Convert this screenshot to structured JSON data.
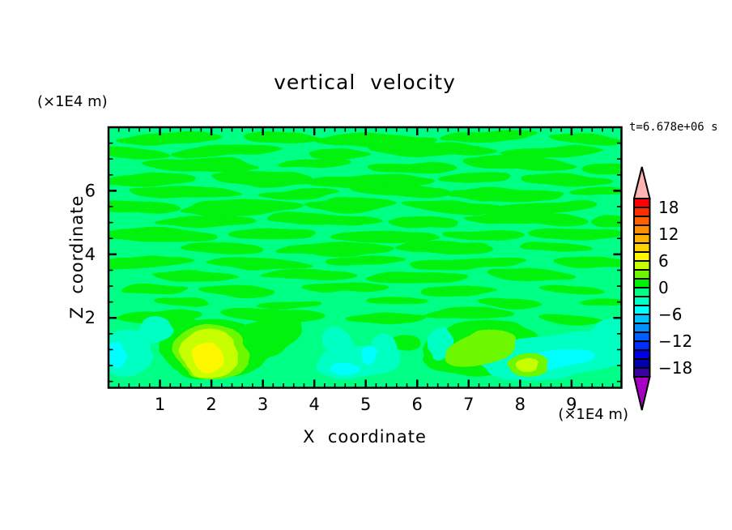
{
  "chart": {
    "title": "vertical  velocity",
    "time_label": "t=6.678e+06 s"
  },
  "axes": {
    "x": {
      "title": "X  coordinate",
      "unit_label": "(×1E4 m)",
      "ticks": [
        1,
        2,
        3,
        4,
        5,
        6,
        7,
        8,
        9
      ],
      "minor_step": 0.2,
      "range": [
        0,
        9.97
      ]
    },
    "z": {
      "title": "Z  coordinate",
      "unit_label": "(×1E4 m)",
      "ticks": [
        2,
        4,
        6
      ],
      "minor_step": 0.5,
      "range": [
        -0.2,
        8.0
      ]
    }
  },
  "colorbar": {
    "labels": [
      "18",
      "12",
      "6",
      "0",
      "−6",
      "−12",
      "−18"
    ],
    "top_value": 20,
    "bottom_value": -20,
    "step": 2,
    "colors_top_to_bottom": [
      "#FB0007",
      "#FF2D00",
      "#FF6000",
      "#FF8E00",
      "#FFB300",
      "#FFD400",
      "#FFF700",
      "#C8FF00",
      "#6EF800",
      "#00F207",
      "#00FF85",
      "#00FFC2",
      "#00FFFF",
      "#00C3FF",
      "#0092FF",
      "#0060FF",
      "#002EFF",
      "#0000E8",
      "#0000B0",
      "#3A00A0"
    ],
    "over_arrow_color": "#FFB3B3",
    "under_arrow_color": "#A800C4"
  },
  "chart_data": {
    "type": "heatmap",
    "subtype": "filled-contour",
    "title": "vertical  velocity",
    "xlabel": "X  coordinate",
    "ylabel": "Z  coordinate",
    "x_unit": "(×1E4 m)",
    "y_unit": "(×1E4 m)",
    "time_annotation": "t=6.678e+06 s",
    "xlim": [
      0,
      9.97
    ],
    "ylim": [
      -0.2,
      8.0
    ],
    "contour_interval": 2,
    "value_range_shown": [
      -20,
      20
    ],
    "legend_position": "right-colorbar",
    "grid": false,
    "palette": {
      "spring": "#00FF85",
      "green": "#00F207",
      "aqua": "#00FFC2",
      "cyan": "#00FFFF",
      "chart1": "#6EF800",
      "chart2": "#C8FF00",
      "yellow": "#FFF700"
    },
    "level_bands": {
      "spring": [
        -2,
        0
      ],
      "green": [
        0,
        2
      ],
      "aqua": [
        -4,
        -2
      ],
      "cyan": [
        -6,
        -4
      ],
      "chart1": [
        2,
        4
      ],
      "chart2": [
        4,
        6
      ],
      "yellow": [
        6,
        8
      ]
    },
    "background_band": "spring",
    "field_description": "Near-zero wavy horizontal bands (0 to 2) fill z=2.2..8; stronger updraft cells (up to ~7) near the surface at x≈2.0, x≈7.2, x≈8.1 and downdrafts (to ~ -6) at x≈0.3, x≈4.9, x≈8.6.",
    "streaks": [
      [
        1.2,
        7.65,
        1.05,
        0.2,
        -2
      ],
      [
        3.4,
        7.7,
        0.75,
        0.17,
        2
      ],
      [
        5.2,
        7.6,
        1.2,
        0.22,
        0
      ],
      [
        7.4,
        7.7,
        0.95,
        0.18,
        -3
      ],
      [
        9.3,
        7.6,
        0.75,
        0.16,
        2
      ],
      [
        0.5,
        7.2,
        0.7,
        0.18,
        3
      ],
      [
        2.3,
        7.25,
        1.1,
        0.2,
        -2
      ],
      [
        4.5,
        7.15,
        0.6,
        0.16,
        0
      ],
      [
        6.3,
        7.3,
        1.25,
        0.22,
        2
      ],
      [
        8.6,
        7.2,
        1.0,
        0.19,
        -2
      ],
      [
        1.8,
        6.8,
        1.15,
        0.21,
        2
      ],
      [
        4.0,
        6.85,
        0.7,
        0.16,
        -3
      ],
      [
        5.9,
        6.75,
        0.9,
        0.18,
        0
      ],
      [
        8.0,
        6.85,
        1.1,
        0.2,
        3
      ],
      [
        9.7,
        6.7,
        0.5,
        0.15,
        0
      ],
      [
        0.8,
        6.35,
        0.9,
        0.19,
        -2
      ],
      [
        3.0,
        6.4,
        1.0,
        0.2,
        2
      ],
      [
        5.1,
        6.3,
        1.25,
        0.22,
        0
      ],
      [
        7.1,
        6.4,
        0.7,
        0.16,
        -2
      ],
      [
        8.9,
        6.35,
        0.9,
        0.18,
        2
      ],
      [
        1.5,
        5.95,
        1.1,
        0.2,
        2
      ],
      [
        3.7,
        5.9,
        0.8,
        0.17,
        -2
      ],
      [
        5.7,
        6.0,
        1.0,
        0.19,
        3
      ],
      [
        7.7,
        5.9,
        1.15,
        0.21,
        0
      ],
      [
        9.5,
        5.95,
        0.55,
        0.15,
        -2
      ],
      [
        0.6,
        5.5,
        0.8,
        0.18,
        2
      ],
      [
        2.6,
        5.45,
        1.2,
        0.21,
        -2
      ],
      [
        4.7,
        5.55,
        0.9,
        0.18,
        0
      ],
      [
        6.7,
        5.5,
        1.0,
        0.19,
        2
      ],
      [
        8.4,
        5.45,
        1.1,
        0.2,
        -3
      ],
      [
        1.9,
        5.05,
        1.0,
        0.19,
        -2
      ],
      [
        4.2,
        5.1,
        1.1,
        0.2,
        2
      ],
      [
        6.1,
        5.0,
        0.7,
        0.16,
        0
      ],
      [
        8.1,
        5.1,
        1.2,
        0.21,
        2
      ],
      [
        9.8,
        5.0,
        0.45,
        0.14,
        0
      ],
      [
        1.0,
        4.6,
        1.15,
        0.2,
        2
      ],
      [
        3.2,
        4.65,
        0.85,
        0.17,
        -2
      ],
      [
        5.4,
        4.55,
        1.05,
        0.19,
        0
      ],
      [
        7.3,
        4.6,
        0.8,
        0.17,
        3
      ],
      [
        9.1,
        4.65,
        0.95,
        0.18,
        -2
      ],
      [
        2.2,
        4.2,
        0.8,
        0.17,
        2
      ],
      [
        4.4,
        4.15,
        1.15,
        0.2,
        -2
      ],
      [
        6.5,
        4.25,
        0.95,
        0.18,
        0
      ],
      [
        8.7,
        4.2,
        0.7,
        0.16,
        2
      ],
      [
        0.7,
        3.75,
        0.95,
        0.18,
        -2
      ],
      [
        2.9,
        3.7,
        1.05,
        0.19,
        2
      ],
      [
        5.0,
        3.8,
        0.8,
        0.17,
        0
      ],
      [
        7.0,
        3.7,
        1.15,
        0.2,
        -2
      ],
      [
        9.4,
        3.75,
        0.75,
        0.16,
        2
      ],
      [
        1.7,
        3.3,
        0.85,
        0.17,
        2
      ],
      [
        3.9,
        3.35,
        0.95,
        0.18,
        -2
      ],
      [
        6.0,
        3.25,
        1.0,
        0.18,
        0
      ],
      [
        8.2,
        3.35,
        0.85,
        0.17,
        2
      ],
      [
        0.9,
        2.9,
        0.65,
        0.15,
        -2
      ],
      [
        2.5,
        2.85,
        0.75,
        0.16,
        2
      ],
      [
        4.6,
        2.95,
        0.85,
        0.16,
        0
      ],
      [
        6.8,
        2.85,
        0.75,
        0.16,
        -2
      ],
      [
        9.0,
        2.9,
        0.6,
        0.14,
        2
      ],
      [
        1.4,
        2.5,
        0.55,
        0.13,
        2
      ],
      [
        3.5,
        2.45,
        0.65,
        0.14,
        -2
      ],
      [
        5.6,
        2.55,
        0.6,
        0.13,
        0
      ],
      [
        7.8,
        2.45,
        0.65,
        0.14,
        2
      ],
      [
        9.6,
        2.5,
        0.45,
        0.12,
        0
      ],
      [
        1.0,
        2.05,
        0.85,
        0.2,
        -3
      ],
      [
        3.2,
        2.1,
        1.0,
        0.2,
        2
      ],
      [
        5.4,
        2.0,
        0.75,
        0.17,
        0
      ],
      [
        7.0,
        2.1,
        0.9,
        0.19,
        -2
      ],
      [
        9.0,
        1.95,
        0.65,
        0.16,
        2
      ]
    ],
    "features": [
      {
        "c": "green",
        "x": 2.05,
        "z": 1.0,
        "rx": 1.05,
        "rz": 0.95,
        "rot": 0
      },
      {
        "c": "green",
        "x": 3.0,
        "z": 1.35,
        "rx": 0.8,
        "rz": 0.6,
        "rot": -20
      },
      {
        "c": "green",
        "x": 1.35,
        "z": 1.7,
        "rx": 0.6,
        "rz": 0.4,
        "rot": 10
      },
      {
        "c": "green",
        "x": 7.25,
        "z": 1.05,
        "rx": 1.15,
        "rz": 0.85,
        "rot": -5
      },
      {
        "c": "green",
        "x": 8.3,
        "z": 0.6,
        "rx": 0.55,
        "rz": 0.4,
        "rot": 0
      },
      {
        "c": "green",
        "x": 5.78,
        "z": 1.18,
        "rx": 0.3,
        "rz": 0.27,
        "rot": 0
      },
      {
        "c": "aqua",
        "x": 0.35,
        "z": 0.9,
        "rx": 0.5,
        "rz": 0.8,
        "rot": -28
      },
      {
        "c": "aqua",
        "x": 0.9,
        "z": 1.6,
        "rx": 0.35,
        "rz": 0.45,
        "rot": -30
      },
      {
        "c": "cyan",
        "x": 0.15,
        "z": 0.85,
        "rx": 0.2,
        "rz": 0.4,
        "rot": -25
      },
      {
        "c": "aqua",
        "x": 4.85,
        "z": 0.6,
        "rx": 0.85,
        "rz": 0.5,
        "rot": -5
      },
      {
        "c": "aqua",
        "x": 4.45,
        "z": 1.25,
        "rx": 0.3,
        "rz": 0.45,
        "rot": 15
      },
      {
        "c": "aqua",
        "x": 5.35,
        "z": 1.1,
        "rx": 0.25,
        "rz": 0.4,
        "rot": -15
      },
      {
        "c": "cyan",
        "x": 4.6,
        "z": 0.4,
        "rx": 0.3,
        "rz": 0.2,
        "rot": 0
      },
      {
        "c": "cyan",
        "x": 5.05,
        "z": 0.85,
        "rx": 0.15,
        "rz": 0.25,
        "rot": 0
      },
      {
        "c": "aqua",
        "x": 6.45,
        "z": 1.2,
        "rx": 0.25,
        "rz": 0.5,
        "rot": 10
      },
      {
        "c": "aqua",
        "x": 8.7,
        "z": 0.8,
        "rx": 1.45,
        "rz": 0.7,
        "rot": -6
      },
      {
        "c": "aqua",
        "x": 9.7,
        "z": 1.6,
        "rx": 0.5,
        "rz": 0.35,
        "rot": -30
      },
      {
        "c": "cyan",
        "x": 8.65,
        "z": 0.7,
        "rx": 0.85,
        "rz": 0.3,
        "rot": -6
      },
      {
        "c": "chart1",
        "x": 7.25,
        "z": 1.05,
        "rx": 0.7,
        "rz": 0.55,
        "rot": -15
      },
      {
        "c": "chart1",
        "x": 8.15,
        "z": 0.55,
        "rx": 0.42,
        "rz": 0.35,
        "rot": 0
      },
      {
        "c": "chart2",
        "x": 8.13,
        "z": 0.55,
        "rx": 0.24,
        "rz": 0.2,
        "rot": 0
      },
      {
        "c": "chart1",
        "x": 2.0,
        "z": 0.9,
        "rx": 0.75,
        "rz": 0.85,
        "rot": 12
      },
      {
        "c": "chart2",
        "x": 1.97,
        "z": 0.85,
        "rx": 0.58,
        "rz": 0.75,
        "rot": 12
      },
      {
        "c": "yellow",
        "x": 1.95,
        "z": 0.75,
        "rx": 0.32,
        "rz": 0.48,
        "rot": 12
      }
    ]
  }
}
